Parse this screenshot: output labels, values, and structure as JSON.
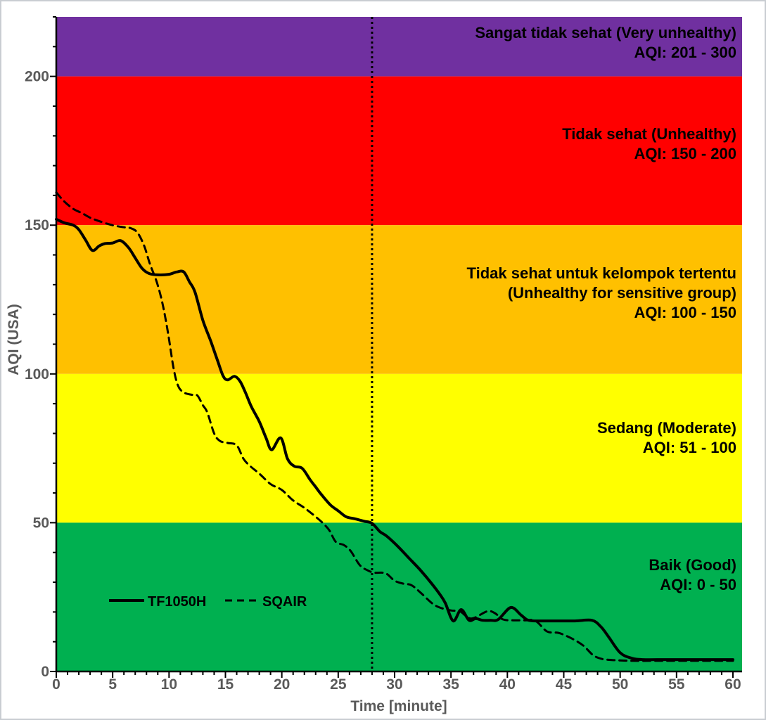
{
  "chart_data": {
    "type": "line",
    "title": "",
    "xlabel": "Time [minute]",
    "ylabel": "AQI (USA)",
    "xlim": [
      0,
      60.8
    ],
    "ylim": [
      0,
      220
    ],
    "x_major_tick_step": 5,
    "x_minor_tick_step": 1,
    "y_major_tick_step": 50,
    "y_minor_tick_step": 10,
    "x_tick_labels": [
      "0",
      "5",
      "10",
      "15",
      "20",
      "25",
      "30",
      "35",
      "40",
      "45",
      "50",
      "55",
      "60"
    ],
    "y_tick_labels": [
      "0",
      "50",
      "100",
      "150",
      "200"
    ],
    "grid": false,
    "legend_position": "inside-bottom-left",
    "bands": [
      {
        "name": "very-unhealthy",
        "color": "#7030A0",
        "aqi_range": [
          200,
          220
        ],
        "label_lines": [
          "Sangat tidak sehat (Very unhealthy)",
          "AQI:  201 - 300"
        ]
      },
      {
        "name": "unhealthy",
        "color": "#FF0000",
        "aqi_range": [
          150,
          200
        ],
        "label_lines": [
          "Tidak sehat (Unhealthy)",
          "AQI:  150 - 200"
        ]
      },
      {
        "name": "unhealthy-sensitive",
        "color": "#FFC000",
        "aqi_range": [
          100,
          150
        ],
        "label_lines": [
          "Tidak sehat untuk kelompok tertentu",
          "(Unhealthy for sensitive group)",
          "AQI:  100 - 150"
        ]
      },
      {
        "name": "moderate",
        "color": "#FFFF00",
        "aqi_range": [
          50,
          100
        ],
        "label_lines": [
          "Sedang (Moderate)",
          "AQI:  51 - 100"
        ]
      },
      {
        "name": "good",
        "color": "#00B050",
        "aqi_range": [
          0,
          50
        ],
        "label_lines": [
          "Baik (Good)",
          "AQI:  0 - 50"
        ]
      }
    ],
    "annotations": [
      {
        "type": "vline",
        "x": 28,
        "style": "dotted",
        "color": "#000000"
      }
    ],
    "legend": {
      "items": [
        {
          "label": "TF1050H",
          "style": "solid"
        },
        {
          "label": "SQAIR",
          "style": "dashed"
        }
      ]
    },
    "series": [
      {
        "name": "TF1050H",
        "style": "solid",
        "color": "#000000",
        "points": [
          [
            0,
            152
          ],
          [
            0.7,
            150.8
          ],
          [
            1.5,
            150
          ],
          [
            2,
            148.5
          ],
          [
            2.6,
            145
          ],
          [
            3.2,
            141.5
          ],
          [
            3.8,
            143
          ],
          [
            4.3,
            143.8
          ],
          [
            5,
            144
          ],
          [
            5.7,
            144.8
          ],
          [
            6.4,
            142.5
          ],
          [
            7,
            139
          ],
          [
            7.6,
            135.5
          ],
          [
            8.2,
            133.8
          ],
          [
            9,
            133.3
          ],
          [
            10,
            133.5
          ],
          [
            10.7,
            134.3
          ],
          [
            11.3,
            134.3
          ],
          [
            11.8,
            131
          ],
          [
            12.3,
            127.5
          ],
          [
            13,
            118
          ],
          [
            13.7,
            111
          ],
          [
            14.3,
            104.5
          ],
          [
            14.8,
            99.3
          ],
          [
            15.2,
            98
          ],
          [
            15.8,
            99.2
          ],
          [
            16.3,
            97.5
          ],
          [
            16.8,
            93.5
          ],
          [
            17.3,
            89
          ],
          [
            18,
            84
          ],
          [
            18.6,
            78.5
          ],
          [
            19.1,
            74.5
          ],
          [
            19.9,
            78.5
          ],
          [
            20.5,
            71.5
          ],
          [
            21.1,
            69
          ],
          [
            21.8,
            68.3
          ],
          [
            22.5,
            64.5
          ],
          [
            23,
            62
          ],
          [
            23.5,
            59.5
          ],
          [
            24.3,
            56
          ],
          [
            25,
            54
          ],
          [
            25.7,
            52
          ],
          [
            26.5,
            51.3
          ],
          [
            27.3,
            50.5
          ],
          [
            28,
            49.8
          ],
          [
            28.7,
            47
          ],
          [
            29.3,
            45.5
          ],
          [
            30.3,
            42
          ],
          [
            31.3,
            38
          ],
          [
            32.3,
            34
          ],
          [
            33.3,
            29.5
          ],
          [
            34,
            26
          ],
          [
            34.5,
            23
          ],
          [
            35.2,
            17
          ],
          [
            35.9,
            20.8
          ],
          [
            36.6,
            17.2
          ],
          [
            37.2,
            17.8
          ],
          [
            37.8,
            17.2
          ],
          [
            38.5,
            17.2
          ],
          [
            39.2,
            17.5
          ],
          [
            40.3,
            21.5
          ],
          [
            41.2,
            19
          ],
          [
            41.8,
            17.3
          ],
          [
            42.5,
            17
          ],
          [
            44,
            17
          ],
          [
            46,
            17
          ],
          [
            47.5,
            17.2
          ],
          [
            48.3,
            15
          ],
          [
            49,
            11.5
          ],
          [
            50,
            6.3
          ],
          [
            51,
            4.5
          ],
          [
            52,
            4
          ],
          [
            54,
            4
          ],
          [
            56,
            4
          ],
          [
            58,
            4
          ],
          [
            60,
            4
          ]
        ]
      },
      {
        "name": "SQAIR",
        "style": "dashed",
        "color": "#000000",
        "points": [
          [
            0,
            161
          ],
          [
            0.7,
            158
          ],
          [
            1.5,
            155.5
          ],
          [
            2.3,
            154
          ],
          [
            3,
            152.5
          ],
          [
            3.7,
            151.5
          ],
          [
            4.5,
            150.5
          ],
          [
            5.2,
            149.8
          ],
          [
            6,
            149.3
          ],
          [
            6.6,
            149
          ],
          [
            7.2,
            147.5
          ],
          [
            7.8,
            143
          ],
          [
            8.3,
            137
          ],
          [
            8.9,
            131
          ],
          [
            9.4,
            124
          ],
          [
            9.9,
            114
          ],
          [
            10.4,
            102
          ],
          [
            10.8,
            96
          ],
          [
            11.3,
            93.8
          ],
          [
            12,
            93
          ],
          [
            12.5,
            92.8
          ],
          [
            13,
            89.5
          ],
          [
            13.4,
            87
          ],
          [
            14,
            80
          ],
          [
            14.5,
            77.5
          ],
          [
            15.2,
            76.8
          ],
          [
            16,
            76
          ],
          [
            16.6,
            71.5
          ],
          [
            17.2,
            69
          ],
          [
            18,
            66.5
          ],
          [
            19,
            63
          ],
          [
            20,
            61
          ],
          [
            21,
            57.5
          ],
          [
            22,
            55
          ],
          [
            23,
            52
          ],
          [
            23.6,
            50
          ],
          [
            24.2,
            47.5
          ],
          [
            24.8,
            43.5
          ],
          [
            25.5,
            42.5
          ],
          [
            26.1,
            40.5
          ],
          [
            26.9,
            35.8
          ],
          [
            27.6,
            34
          ],
          [
            28.2,
            33.2
          ],
          [
            29.2,
            33
          ],
          [
            30,
            30.5
          ],
          [
            30.8,
            29.5
          ],
          [
            31.5,
            29
          ],
          [
            32.3,
            26.5
          ],
          [
            33.3,
            23
          ],
          [
            34,
            21.5
          ],
          [
            35,
            20.5
          ],
          [
            35.8,
            20.2
          ],
          [
            36.8,
            17.8
          ],
          [
            38.2,
            20.2
          ],
          [
            38.9,
            19.6
          ],
          [
            39.6,
            17.5
          ],
          [
            40.5,
            17.2
          ],
          [
            41.5,
            17.2
          ],
          [
            42.5,
            17
          ],
          [
            43.5,
            13.5
          ],
          [
            44.5,
            13
          ],
          [
            45.2,
            12
          ],
          [
            46,
            10.5
          ],
          [
            46.8,
            8.5
          ],
          [
            47.6,
            5.5
          ],
          [
            48.4,
            4.2
          ],
          [
            49.5,
            3.8
          ],
          [
            51,
            3.6
          ],
          [
            53,
            3.6
          ],
          [
            56,
            3.6
          ],
          [
            60,
            3.6
          ]
        ]
      }
    ],
    "colors": {
      "axis": "#000000",
      "tick_text": "#595959",
      "band_text": "#000000",
      "series": "#000000"
    }
  }
}
